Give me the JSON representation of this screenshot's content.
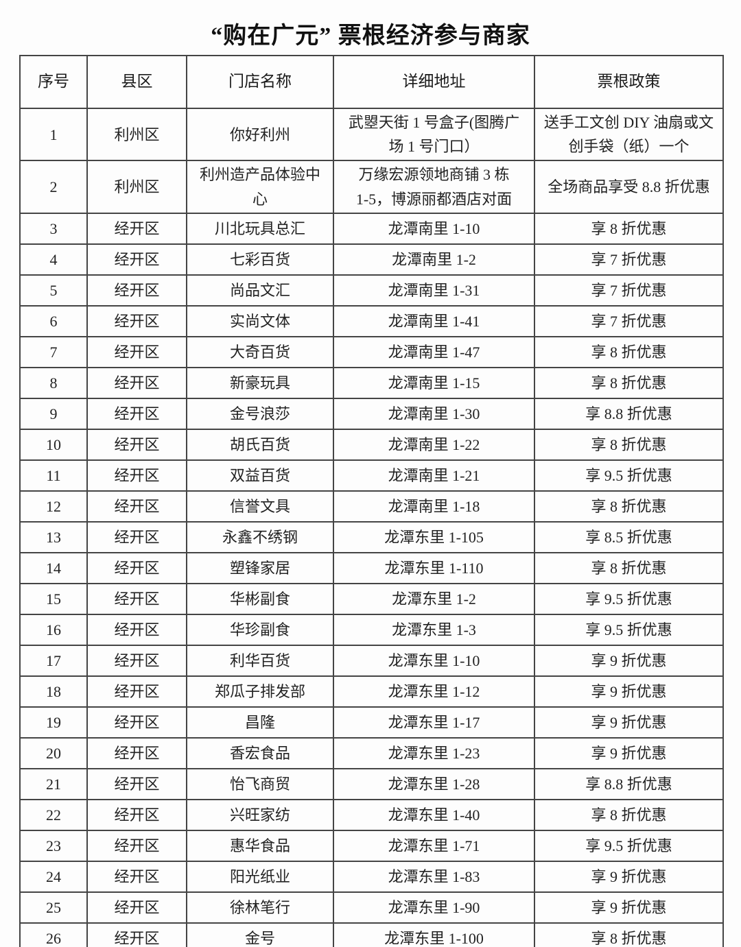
{
  "page": {
    "title": "“购在广元” 票根经济参与商家"
  },
  "table": {
    "columns": [
      "序号",
      "县区",
      "门店名称",
      "详细地址",
      "票根政策"
    ],
    "rows": [
      {
        "no": "1",
        "district": "利州区",
        "store": "你好利州",
        "address": "武曌天街 1 号盒子(图腾广\n场 1 号门口）",
        "policy": "送手工文创 DIY 油扇或文\n创手袋（纸）一个"
      },
      {
        "no": "2",
        "district": "利州区",
        "store": "利州造产品体验中\n心",
        "address": "万缘宏源领地商铺 3 栋\n1-5，博源丽都酒店对面",
        "policy": "全场商品享受 8.8 折优惠"
      },
      {
        "no": "3",
        "district": "经开区",
        "store": "川北玩具总汇",
        "address": "龙潭南里 1-10",
        "policy": "享 8 折优惠"
      },
      {
        "no": "4",
        "district": "经开区",
        "store": "七彩百货",
        "address": "龙潭南里 1-2",
        "policy": "享 7 折优惠"
      },
      {
        "no": "5",
        "district": "经开区",
        "store": "尚品文汇",
        "address": "龙潭南里 1-31",
        "policy": "享 7 折优惠"
      },
      {
        "no": "6",
        "district": "经开区",
        "store": "实尚文体",
        "address": "龙潭南里 1-41",
        "policy": "享 7 折优惠"
      },
      {
        "no": "7",
        "district": "经开区",
        "store": "大奇百货",
        "address": "龙潭南里 1-47",
        "policy": "享 8 折优惠"
      },
      {
        "no": "8",
        "district": "经开区",
        "store": "新豪玩具",
        "address": "龙潭南里 1-15",
        "policy": "享 8 折优惠"
      },
      {
        "no": "9",
        "district": "经开区",
        "store": "金号浪莎",
        "address": "龙潭南里 1-30",
        "policy": "享 8.8 折优惠"
      },
      {
        "no": "10",
        "district": "经开区",
        "store": "胡氏百货",
        "address": "龙潭南里 1-22",
        "policy": "享 8 折优惠"
      },
      {
        "no": "11",
        "district": "经开区",
        "store": "双益百货",
        "address": "龙潭南里 1-21",
        "policy": "享 9.5 折优惠"
      },
      {
        "no": "12",
        "district": "经开区",
        "store": "信誉文具",
        "address": "龙潭南里 1-18",
        "policy": "享 8 折优惠"
      },
      {
        "no": "13",
        "district": "经开区",
        "store": "永鑫不绣钢",
        "address": "龙潭东里 1-105",
        "policy": "享 8.5 折优惠"
      },
      {
        "no": "14",
        "district": "经开区",
        "store": "塑锋家居",
        "address": "龙潭东里 1-110",
        "policy": "享 8 折优惠"
      },
      {
        "no": "15",
        "district": "经开区",
        "store": "华彬副食",
        "address": "龙潭东里 1-2",
        "policy": "享 9.5 折优惠"
      },
      {
        "no": "16",
        "district": "经开区",
        "store": "华珍副食",
        "address": "龙潭东里 1-3",
        "policy": "享 9.5 折优惠"
      },
      {
        "no": "17",
        "district": "经开区",
        "store": "利华百货",
        "address": "龙潭东里 1-10",
        "policy": "享 9 折优惠"
      },
      {
        "no": "18",
        "district": "经开区",
        "store": "郑瓜子排发部",
        "address": "龙潭东里 1-12",
        "policy": "享 9 折优惠"
      },
      {
        "no": "19",
        "district": "经开区",
        "store": "昌隆",
        "address": "龙潭东里 1-17",
        "policy": "享 9 折优惠"
      },
      {
        "no": "20",
        "district": "经开区",
        "store": "香宏食品",
        "address": "龙潭东里 1-23",
        "policy": "享 9 折优惠"
      },
      {
        "no": "21",
        "district": "经开区",
        "store": "怡飞商贸",
        "address": "龙潭东里 1-28",
        "policy": "享 8.8 折优惠"
      },
      {
        "no": "22",
        "district": "经开区",
        "store": "兴旺家纺",
        "address": "龙潭东里 1-40",
        "policy": "享 8 折优惠"
      },
      {
        "no": "23",
        "district": "经开区",
        "store": "惠华食品",
        "address": "龙潭东里 1-71",
        "policy": "享 9.5 折优惠"
      },
      {
        "no": "24",
        "district": "经开区",
        "store": "阳光纸业",
        "address": "龙潭东里 1-83",
        "policy": "享 9 折优惠"
      },
      {
        "no": "25",
        "district": "经开区",
        "store": "徐林笔行",
        "address": "龙潭东里 1-90",
        "policy": "享 9 折优惠"
      },
      {
        "no": "26",
        "district": "经开区",
        "store": "金号",
        "address": "龙潭东里 1-100",
        "policy": "享 8 折优惠"
      }
    ]
  }
}
